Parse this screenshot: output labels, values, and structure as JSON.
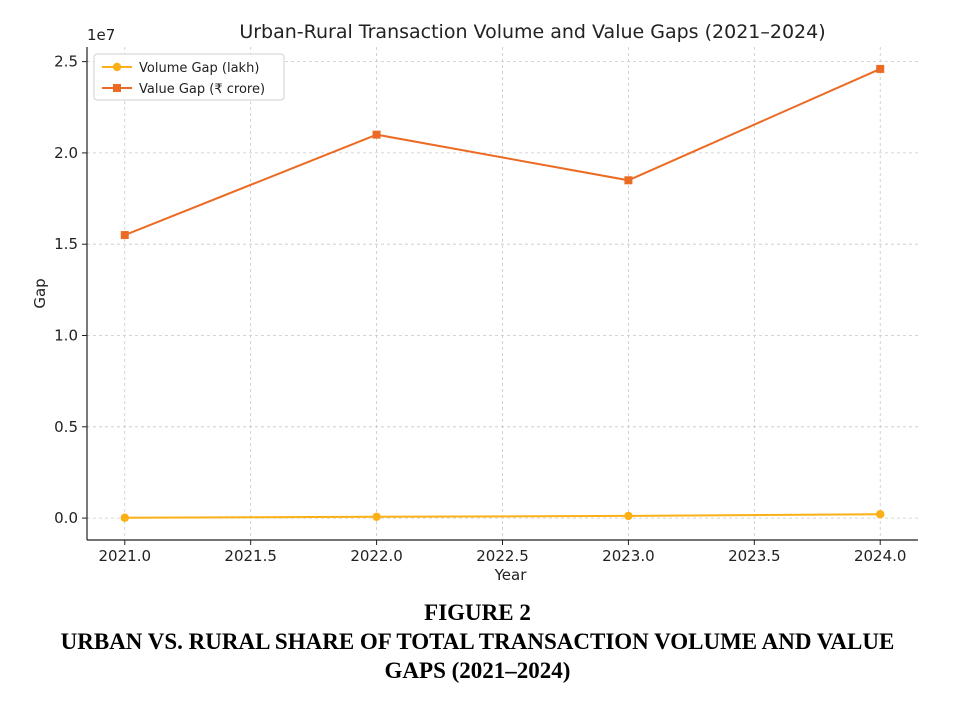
{
  "chart_data": {
    "type": "line",
    "title": "Urban-Rural Transaction Volume and Value Gaps (2021–2024)",
    "xlabel": "Year",
    "ylabel": "Gap",
    "y_offset_text": "1e7",
    "xlim": [
      2020.85,
      2024.15
    ],
    "ylim": [
      -0.12,
      2.58
    ],
    "y_scale_multiplier": 10000000,
    "x_ticks": [
      2021.0,
      2021.5,
      2022.0,
      2022.5,
      2023.0,
      2023.5,
      2024.0
    ],
    "x_tick_labels": [
      "2021.0",
      "2021.5",
      "2022.0",
      "2022.5",
      "2023.0",
      "2023.5",
      "2024.0"
    ],
    "y_ticks": [
      0.0,
      0.5,
      1.0,
      1.5,
      2.0,
      2.5
    ],
    "y_tick_labels": [
      "0.0",
      "0.5",
      "1.0",
      "1.5",
      "2.0",
      "2.5"
    ],
    "grid": true,
    "legend_position": "top-left",
    "x": [
      2021,
      2022,
      2023,
      2024
    ],
    "series": [
      {
        "name": "Volume Gap (lakh)",
        "values": [
          0.002,
          0.007,
          0.012,
          0.021
        ],
        "color": "#fbb017",
        "marker": "circle"
      },
      {
        "name": "Value Gap (₹ crore)",
        "values": [
          1.55,
          2.1,
          1.85,
          2.46
        ],
        "color": "#ec6b24",
        "marker": "square"
      }
    ]
  },
  "caption": {
    "line1": "FIGURE 2",
    "line2": "URBAN VS. RURAL SHARE OF TOTAL TRANSACTION VOLUME AND VALUE",
    "line3": "GAPS (2021–2024)"
  }
}
